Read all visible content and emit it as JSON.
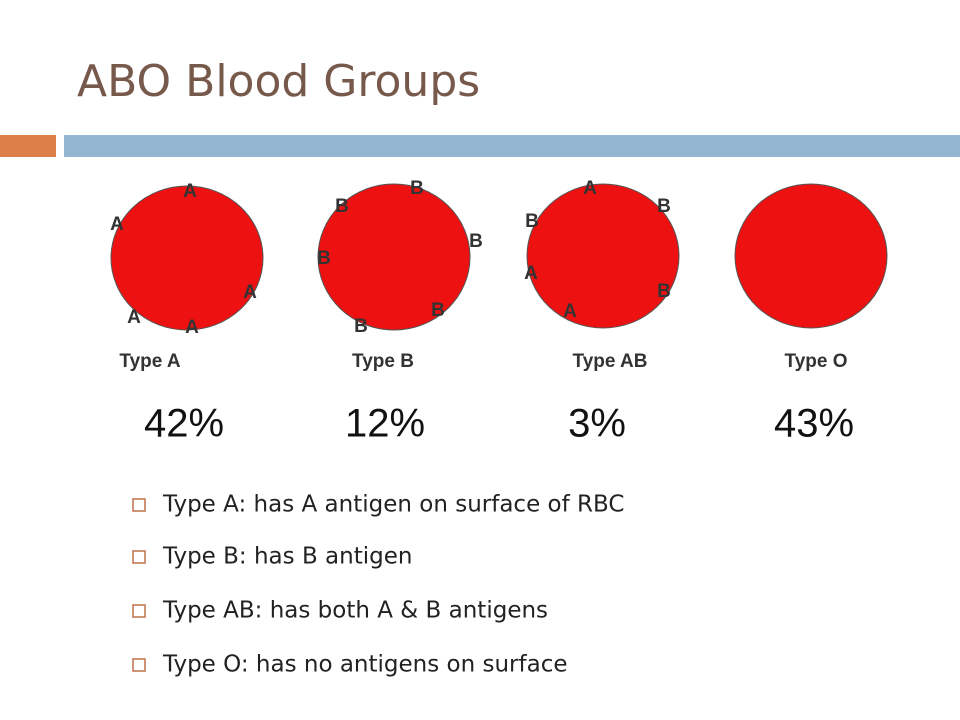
{
  "title": "ABO Blood Groups",
  "types": [
    {
      "antigens": [
        "A",
        "A",
        "A",
        "A",
        "A"
      ],
      "label": "Type A",
      "percent": "42%"
    },
    {
      "antigens": [
        "B",
        "B",
        "B",
        "B",
        "B",
        "B"
      ],
      "label": "Type B",
      "percent": "12%"
    },
    {
      "antigens": [
        "A",
        "B",
        "B",
        "A",
        "B",
        "A"
      ],
      "label": "Type AB",
      "percent": "3%"
    },
    {
      "antigens": [],
      "label": "Type O",
      "percent": "43%"
    }
  ],
  "bullets": [
    "Type A: has A antigen on surface of RBC",
    "Type B: has B antigen",
    "Type AB: has both A & B antigens",
    "Type O: has no antigens on surface"
  ]
}
